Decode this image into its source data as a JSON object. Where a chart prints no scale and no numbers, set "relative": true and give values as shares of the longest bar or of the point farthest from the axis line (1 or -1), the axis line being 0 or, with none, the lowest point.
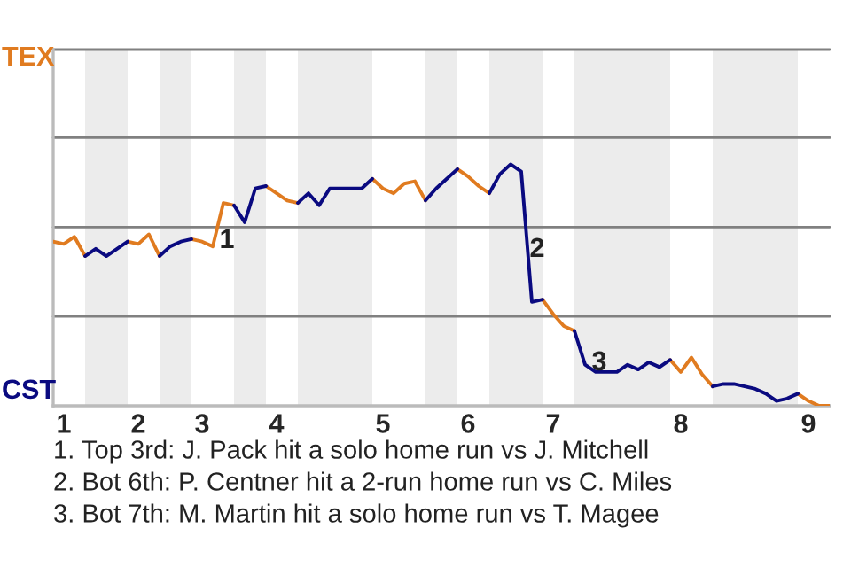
{
  "chart_data": {
    "type": "line",
    "relative": true,
    "annotations": [
      "1",
      "2",
      "3",
      "1. Top 3rd: J. Pack hit a solo home run vs J. Mitchell",
      "2. Bot 6th: P. Centner hit a 2-run home run vs C. Miles",
      "3. Bot 7th: M. Martin hit a solo home run vs T. Magee"
    ],
    "categories": [
      null,
      "1",
      null,
      null,
      null,
      null,
      null,
      null,
      "2",
      null,
      null,
      null,
      null,
      null,
      "3",
      null,
      null,
      null,
      null,
      null,
      null,
      "4",
      null,
      null,
      null,
      null,
      null,
      null,
      null,
      null,
      null,
      "5",
      null,
      null,
      null,
      null,
      null,
      null,
      null,
      "6",
      null,
      null,
      null,
      null,
      null,
      null,
      null,
      "7",
      null,
      null,
      null,
      null,
      null,
      null,
      null,
      null,
      null,
      null,
      null,
      "8",
      null,
      null,
      null,
      null,
      null,
      null,
      null,
      null,
      null,
      null,
      null,
      "9",
      null,
      null
    ],
    "series": [
      {
        "name": "TEX",
        "color": "#e07b20",
        "values": [
          0.68,
          0.67,
          0.7,
          0.62,
          null,
          null,
          null,
          0.68,
          0.67,
          0.71,
          0.62,
          null,
          null,
          0.69,
          0.68,
          0.66,
          0.84,
          0.83,
          null,
          null,
          0.91,
          0.88,
          0.85,
          0.84,
          null,
          null,
          null,
          null,
          null,
          null,
          0.94,
          0.9,
          0.88,
          0.92,
          0.93,
          0.85,
          null,
          null,
          0.98,
          0.95,
          0.91,
          0.88,
          null,
          null,
          null,
          null,
          0.44,
          0.38,
          0.33,
          0.31,
          null,
          null,
          null,
          null,
          null,
          null,
          null,
          null,
          0.19,
          0.14,
          0.2,
          0.13,
          0.08,
          null,
          null,
          null,
          null,
          null,
          null,
          null,
          0.05,
          0.02,
          0,
          0
        ]
      },
      {
        "name": "CST",
        "color": "#0a0a80",
        "values": [
          null,
          null,
          null,
          0.62,
          0.65,
          0.62,
          0.65,
          0.68,
          null,
          null,
          0.62,
          0.66,
          0.68,
          0.69,
          null,
          null,
          null,
          0.83,
          0.76,
          0.9,
          0.91,
          null,
          null,
          0.84,
          0.88,
          0.83,
          0.9,
          0.9,
          0.9,
          0.9,
          0.94,
          null,
          null,
          null,
          null,
          0.85,
          0.9,
          0.94,
          0.98,
          null,
          null,
          0.88,
          0.96,
          1,
          0.97,
          0.43,
          0.44,
          null,
          null,
          0.31,
          0.17,
          0.14,
          0.14,
          0.14,
          0.17,
          0.15,
          0.18,
          0.16,
          0.19,
          null,
          null,
          null,
          0.08,
          0.09,
          0.09,
          0.08,
          0.07,
          0.05,
          0.02,
          0.03,
          0.05,
          null,
          null,
          null
        ]
      }
    ],
    "ref_lines": [
      {
        "axis": "y",
        "value": 0.37,
        "color": "#808080"
      },
      {
        "axis": "y",
        "value": 0.74,
        "color": "#808080"
      },
      {
        "axis": "y",
        "value": 1.11,
        "color": "#808080"
      },
      {
        "axis": "y",
        "value": 1.475,
        "color": "#808080"
      }
    ],
    "legend": false
  }
}
